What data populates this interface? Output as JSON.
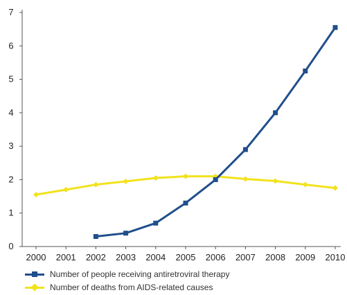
{
  "chart_data": {
    "type": "line",
    "title": "",
    "xlabel": "",
    "ylabel": "",
    "x": [
      "2000",
      "2001",
      "2002",
      "2003",
      "2004",
      "2005",
      "2006",
      "2007",
      "2008",
      "2009",
      "2010"
    ],
    "ylim": [
      0,
      7
    ],
    "yticks": [
      "0",
      "1",
      "2",
      "3",
      "4",
      "5",
      "6",
      "7"
    ],
    "grid": false,
    "legend_position": "bottom-left",
    "series": [
      {
        "name": "Number of people receiving antiretroviral therapy",
        "color": "#1f4e8c",
        "marker": "square",
        "values": [
          null,
          null,
          0.3,
          0.4,
          0.7,
          1.3,
          2.0,
          2.9,
          4.0,
          5.25,
          6.55
        ]
      },
      {
        "name": "Number of deaths from AIDS-related causes",
        "color": "#f2e21c",
        "marker": "diamond",
        "values": [
          1.55,
          1.7,
          1.85,
          1.95,
          2.05,
          2.1,
          2.1,
          2.02,
          1.96,
          1.85,
          1.75
        ]
      }
    ]
  }
}
